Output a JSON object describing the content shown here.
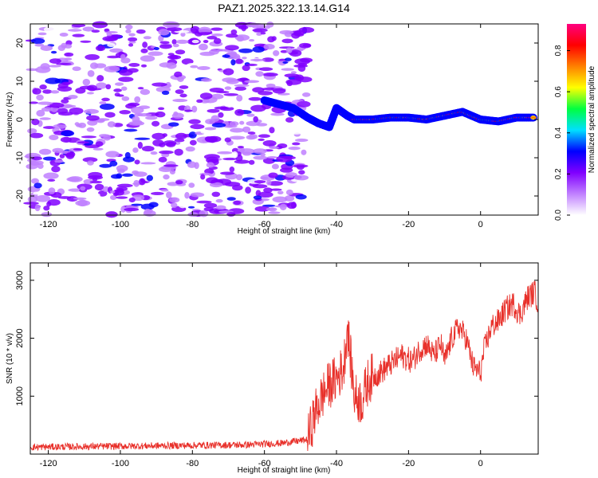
{
  "chart_data": [
    {
      "type": "heatmap",
      "title": "PAZ1.2025.322.13.14.G14",
      "xlabel": "Height of straight line (km)",
      "ylabel": "Frequency (Hz)",
      "xlim": [
        -125,
        16
      ],
      "ylim": [
        -25,
        25
      ],
      "xticks": [
        -120,
        -100,
        -80,
        -60,
        -40,
        -20,
        0
      ],
      "yticks": [
        -20,
        -10,
        0,
        10,
        20
      ],
      "signal_band": {
        "x": [
          -60,
          -56,
          -52,
          -48,
          -45,
          -42,
          -40,
          -37,
          -35,
          -30,
          -25,
          -20,
          -15,
          -10,
          -5,
          0,
          5,
          10,
          15
        ],
        "center_hz": [
          5,
          4,
          3,
          0.5,
          -1,
          -2,
          3,
          1,
          0,
          0,
          0.5,
          0.5,
          0,
          1,
          2,
          0,
          -0.5,
          0.5,
          0.5
        ]
      },
      "colorbar": {
        "label": "Normalized spectral amplitude",
        "range": [
          0,
          0.93
        ],
        "ticks": [
          "0.0",
          "0.2",
          "0.4",
          "0.6",
          "0.8"
        ],
        "tick_values": [
          0.0,
          0.2,
          0.4,
          0.6,
          0.8
        ],
        "colors": [
          "#ffffff",
          "#c080ff",
          "#8000ff",
          "#0000ff",
          "#00e0ff",
          "#00ff40",
          "#ffff00",
          "#ff8000",
          "#ff0000",
          "#ff0080"
        ]
      }
    },
    {
      "type": "line",
      "xlabel": "Height of straight line (km)",
      "ylabel": "SNR (10 * v/v)",
      "xlim": [
        -125,
        16
      ],
      "ylim": [
        0,
        3300
      ],
      "xticks": [
        -120,
        -100,
        -80,
        -60,
        -40,
        -20,
        0
      ],
      "yticks": [
        1000,
        2000,
        3000
      ],
      "series": [
        {
          "name": "SNR",
          "color": "#e8302a",
          "x": [
            -125,
            -110,
            -95,
            -80,
            -65,
            -55,
            -48,
            -46,
            -44,
            -42,
            -40,
            -38,
            -37,
            -35,
            -33,
            -31,
            -28,
            -25,
            -22,
            -19,
            -17,
            -15,
            -13,
            -11,
            -10,
            -8,
            -6,
            -4,
            -2,
            0,
            1,
            3,
            5,
            7,
            9,
            11,
            13,
            15,
            16
          ],
          "values": [
            120,
            130,
            140,
            150,
            160,
            190,
            250,
            700,
            1000,
            1200,
            1300,
            1500,
            2200,
            1000,
            900,
            1300,
            1400,
            1550,
            1700,
            1600,
            1800,
            1900,
            1700,
            1900,
            1600,
            2000,
            2200,
            2000,
            1500,
            1400,
            1800,
            2200,
            2300,
            2500,
            2600,
            2400,
            2700,
            2800,
            2600
          ]
        }
      ]
    }
  ]
}
